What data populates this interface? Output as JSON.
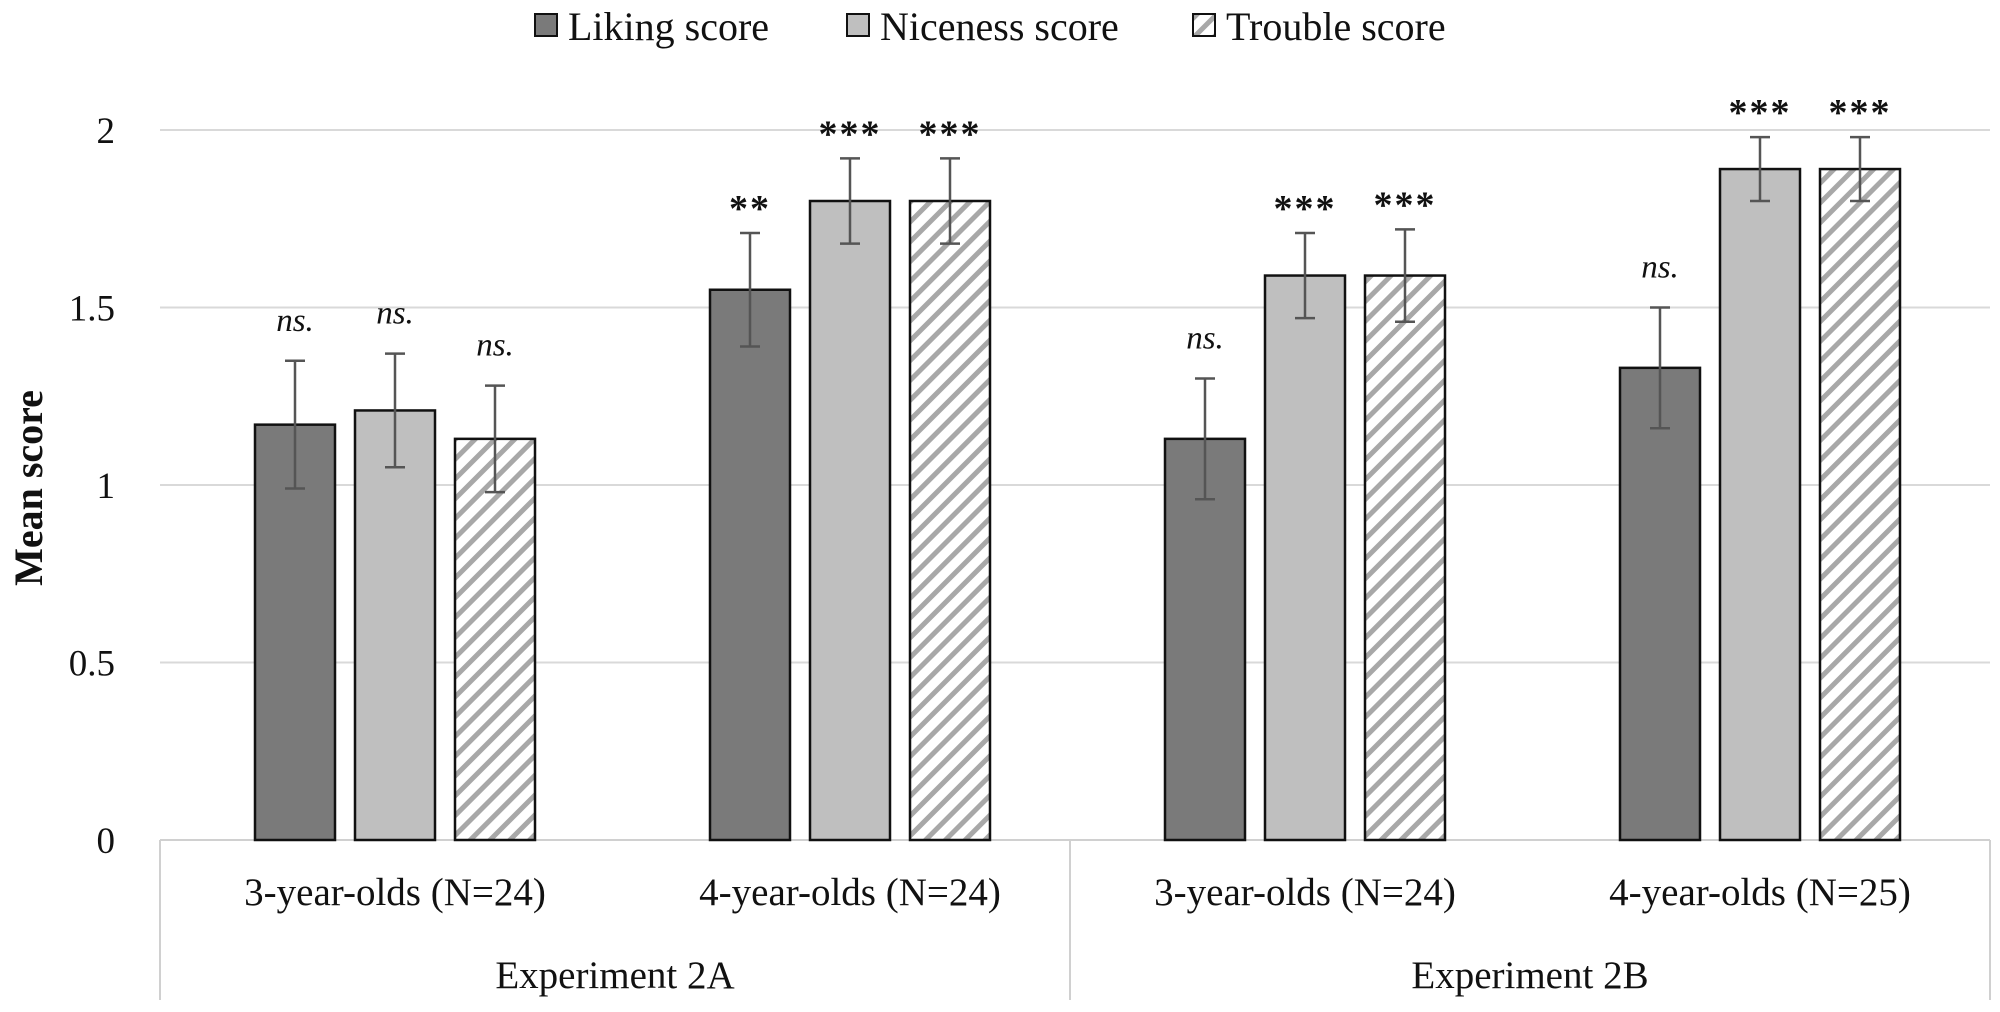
{
  "chart_data": {
    "type": "bar",
    "title": "",
    "xlabel": "",
    "ylabel": "Mean score",
    "ylim": [
      0,
      2
    ],
    "yticks": [
      "0",
      "0.5",
      "1",
      "1.5",
      "2"
    ],
    "grid": true,
    "legend_position": "top-center",
    "groups": [
      {
        "label": "Experiment 2A",
        "categories": [
          "3-year-olds (N=24)",
          "4-year-olds (N=24)"
        ]
      },
      {
        "label": "Experiment 2B",
        "categories": [
          "3-year-olds (N=24)",
          "4-year-olds (N=25)"
        ]
      }
    ],
    "categories": [
      "3-year-olds (N=24)",
      "4-year-olds (N=24)",
      "3-year-olds (N=24)",
      "4-year-olds (N=25)"
    ],
    "series": [
      {
        "name": "Liking score",
        "color": "#7a7a7a",
        "pattern": "solid",
        "values": [
          1.17,
          1.55,
          1.13,
          1.33
        ],
        "errors": [
          0.18,
          0.16,
          0.17,
          0.17
        ],
        "significance": [
          "ns.",
          "**",
          "ns.",
          "ns."
        ]
      },
      {
        "name": "Niceness score",
        "color": "#bfbfbf",
        "pattern": "solid",
        "values": [
          1.21,
          1.8,
          1.59,
          1.89
        ],
        "errors": [
          0.16,
          0.12,
          0.12,
          0.09
        ],
        "significance": [
          "ns.",
          "***",
          "***",
          "***"
        ]
      },
      {
        "name": "Trouble score",
        "color": "#ffffff",
        "pattern": "hatched",
        "values": [
          1.13,
          1.8,
          1.59,
          1.89
        ],
        "errors": [
          0.15,
          0.12,
          0.13,
          0.09
        ],
        "significance": [
          "ns.",
          "***",
          "***",
          "***"
        ]
      }
    ]
  }
}
